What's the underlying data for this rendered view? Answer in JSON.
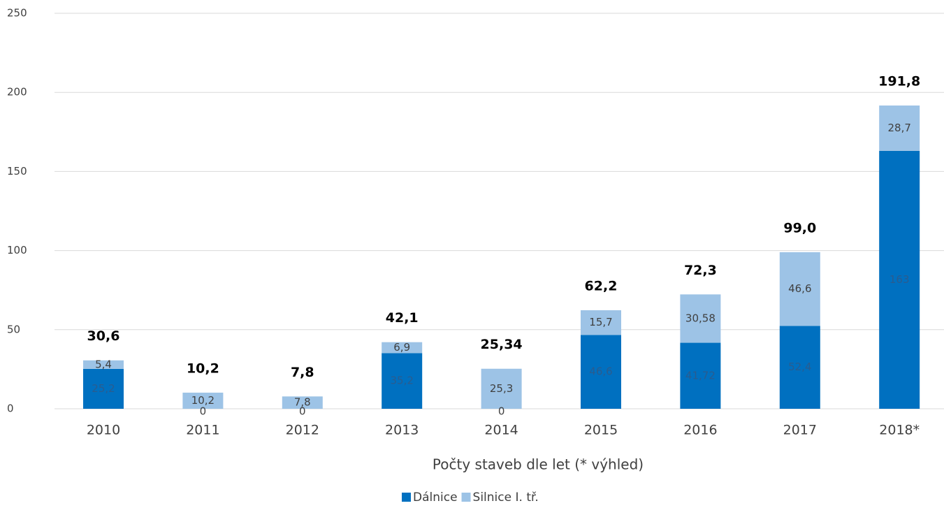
{
  "chart_data": {
    "type": "stacked_bar",
    "x_label": "Počty staveb dle let (* výhled)",
    "categories": [
      "2010",
      "2011",
      "2012",
      "2013",
      "2014",
      "2015",
      "2016",
      "2017",
      "2018*"
    ],
    "series": [
      {
        "name": "Dálnice",
        "color": "#0070c0",
        "values": [
          25.2,
          0,
          0,
          35.2,
          0,
          46.6,
          41.72,
          52.4,
          163
        ],
        "value_labels": [
          "25,2",
          "0",
          "0",
          "35,2",
          "0",
          "46,6",
          "41,72",
          "52,4",
          "163"
        ]
      },
      {
        "name": "Silnice I. tř.",
        "color": "#9dc3e6",
        "values": [
          5.4,
          10.2,
          7.8,
          6.9,
          25.3,
          15.7,
          30.58,
          46.6,
          28.7
        ],
        "value_labels": [
          "5,4",
          "10,2",
          "7,8",
          "6,9",
          "25,3",
          "15,7",
          "30,58",
          "46,6",
          "28,7"
        ]
      }
    ],
    "totals": [
      30.6,
      10.2,
      7.8,
      42.1,
      25.34,
      62.2,
      72.3,
      99.0,
      191.8
    ],
    "total_labels": [
      "30,6",
      "10,2",
      "7,8",
      "42,1",
      "25,34",
      "62,2",
      "72,3",
      "99,0",
      "191,8"
    ],
    "ylim": [
      0,
      250
    ],
    "yticks": [
      0,
      50,
      100,
      150,
      200,
      250
    ],
    "grid": true,
    "legend": "bottom"
  }
}
